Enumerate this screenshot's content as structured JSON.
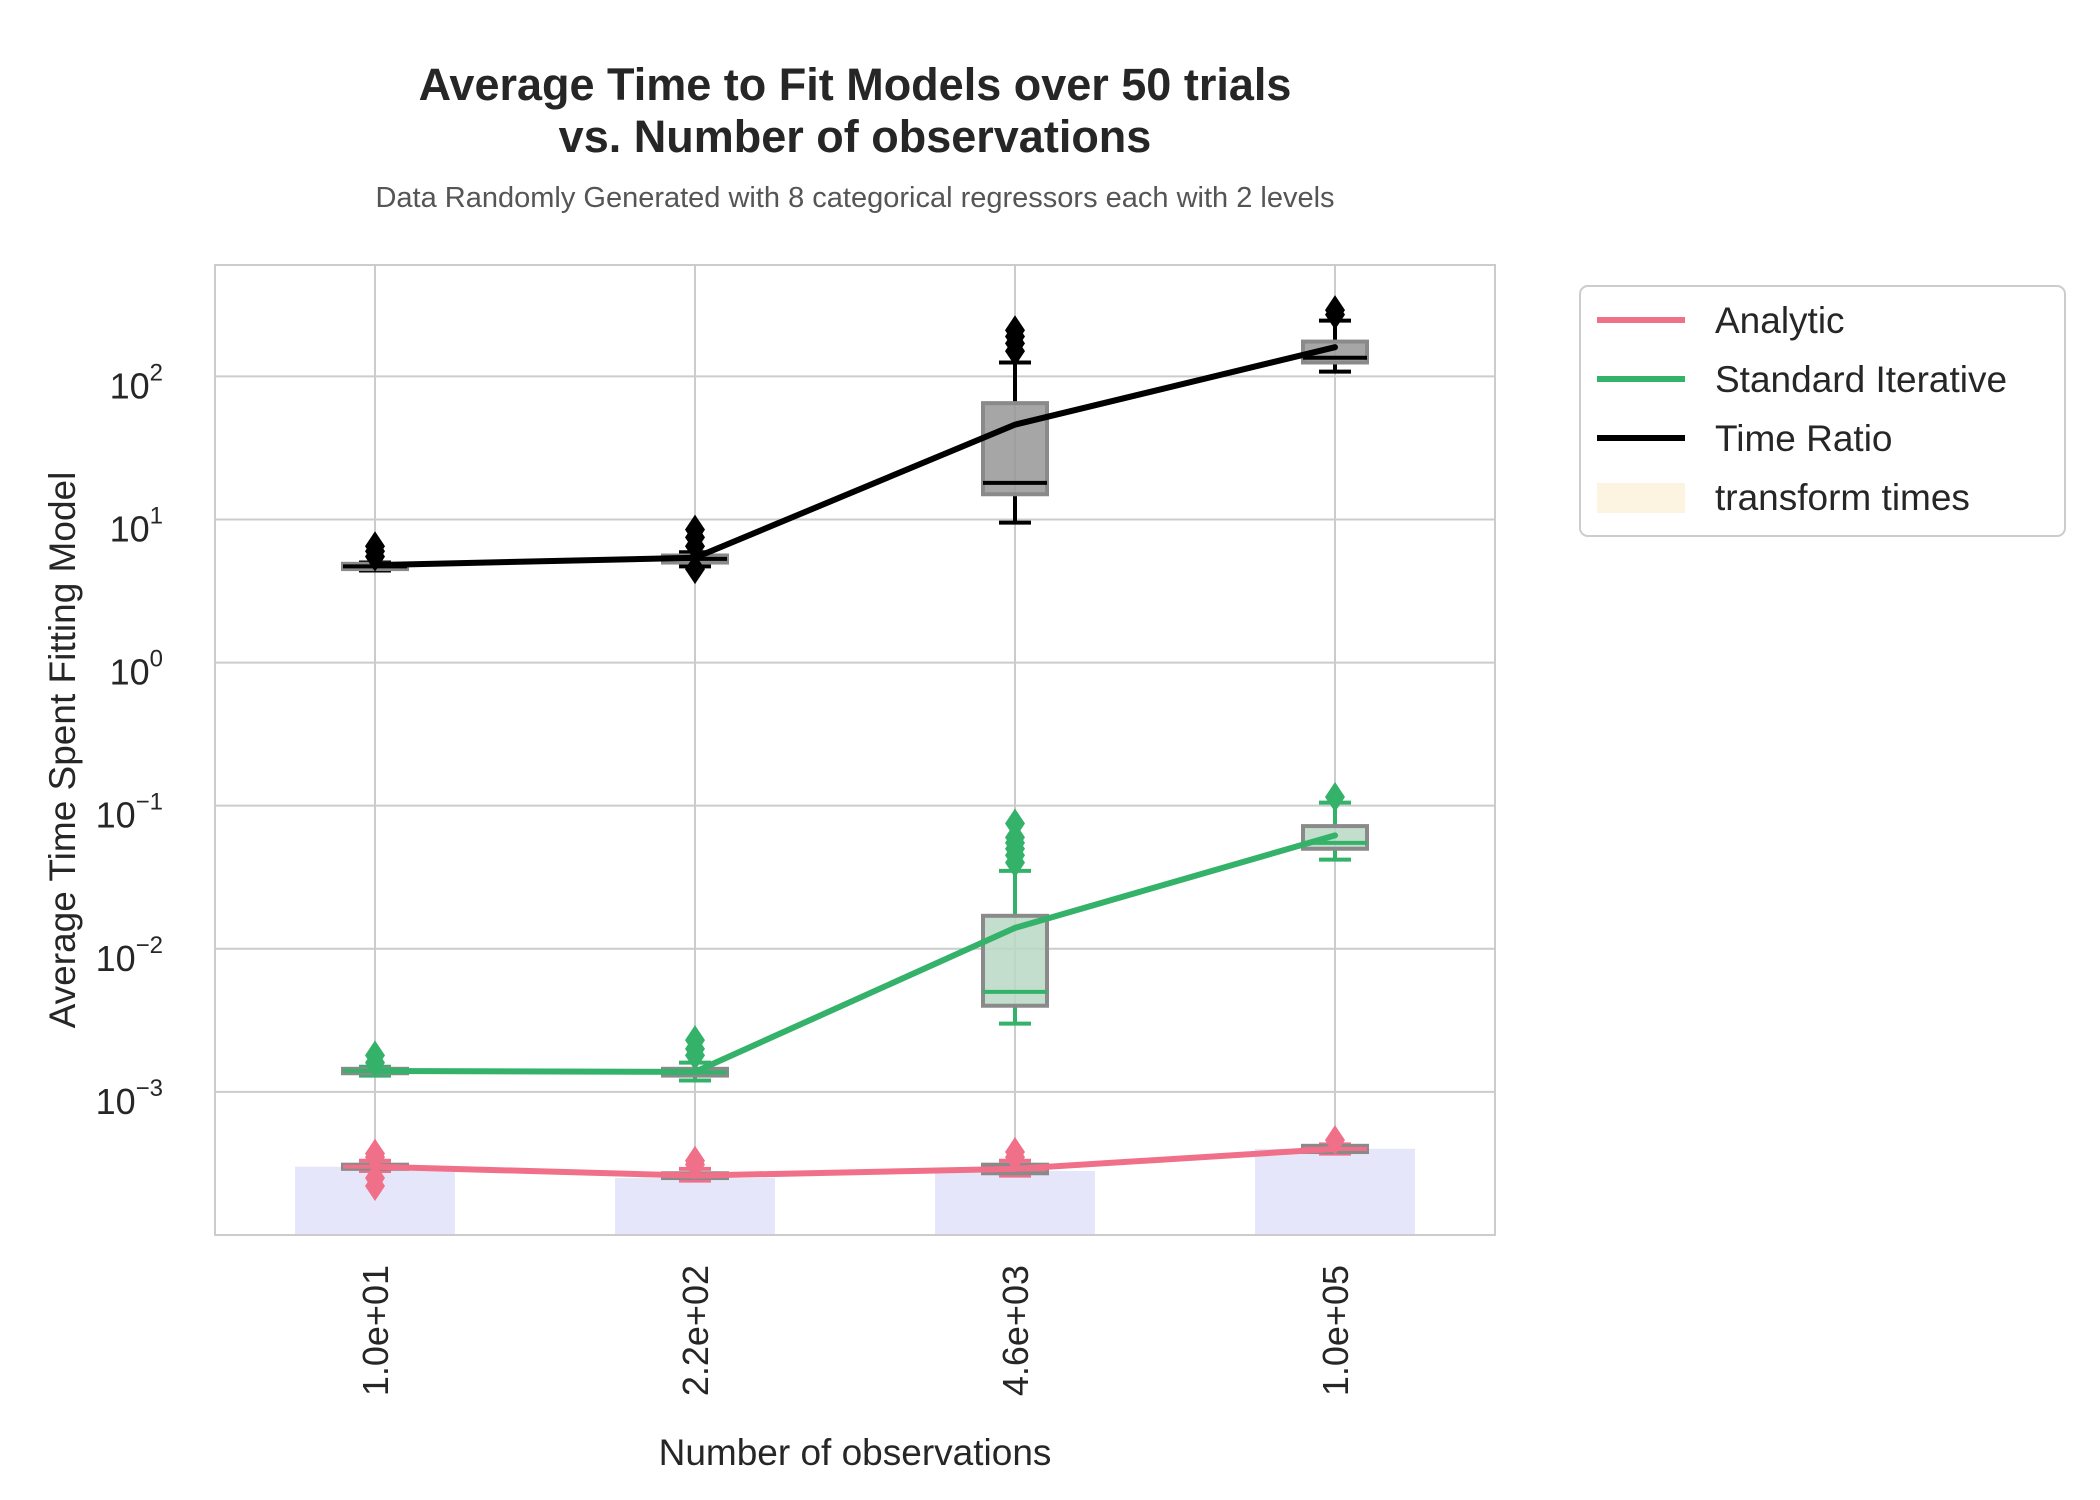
{
  "chart_data": {
    "type": "line",
    "title": [
      "Average Time to Fit Models over 50 trials",
      "vs. Number of observations"
    ],
    "subtitle": "Data Randomly Generated with 8 categorical regressors each with 2 levels",
    "xlabel": "Number of observations",
    "ylabel": "Average Time Spent Fitting Model",
    "y_scale": "log",
    "ylim": [
      0.0001,
      600
    ],
    "grid": true,
    "legend_position": "outside-right-top",
    "categories": [
      "1.0e+01",
      "2.2e+02",
      "4.6e+03",
      "1.0e+05"
    ],
    "y_ticks": [
      {
        "base": "10",
        "exp": "−3",
        "value": 0.001
      },
      {
        "base": "10",
        "exp": "−2",
        "value": 0.01
      },
      {
        "base": "10",
        "exp": "−1",
        "value": 0.1
      },
      {
        "base": "10",
        "exp": "0",
        "value": 1
      },
      {
        "base": "10",
        "exp": "1",
        "value": 10
      },
      {
        "base": "10",
        "exp": "2",
        "value": 100
      }
    ],
    "bars": {
      "name": "transform times",
      "color": "#e6e6fa",
      "legend_color": "#fdf3e1",
      "values": [
        0.0003,
        0.00025,
        0.00028,
        0.0004
      ]
    },
    "series": [
      {
        "name": "Analytic",
        "color": "#f07089",
        "values": [
          0.0003,
          0.00026,
          0.00029,
          0.0004
        ],
        "box_color": "#f07089",
        "boxes": [
          {
            "q1": 0.00029,
            "median": 0.0003,
            "q3": 0.00031,
            "whisker_low": 0.00028,
            "whisker_high": 0.00033,
            "outliers": [
              0.00022,
              0.00025,
              0.00035,
              0.00037
            ]
          },
          {
            "q1": 0.00025,
            "median": 0.00026,
            "q3": 0.00027,
            "whisker_low": 0.00024,
            "whisker_high": 0.00029,
            "outliers": [
              0.00031,
              0.00033
            ]
          },
          {
            "q1": 0.00027,
            "median": 0.00029,
            "q3": 0.00031,
            "whisker_low": 0.00026,
            "whisker_high": 0.00033,
            "outliers": [
              0.00035,
              0.00038
            ]
          },
          {
            "q1": 0.00038,
            "median": 0.0004,
            "q3": 0.00042,
            "whisker_low": 0.00037,
            "whisker_high": 0.00043,
            "outliers": [
              0.00046
            ]
          }
        ]
      },
      {
        "name": "Standard Iterative",
        "color": "#34b26a",
        "values": [
          0.0014,
          0.00138,
          0.014,
          0.062
        ],
        "box_color": "#b9d8c4",
        "boxes": [
          {
            "q1": 0.00135,
            "median": 0.0014,
            "q3": 0.00145,
            "whisker_low": 0.0013,
            "whisker_high": 0.0015,
            "outliers": [
              0.0016,
              0.0018
            ]
          },
          {
            "q1": 0.0013,
            "median": 0.00137,
            "q3": 0.00145,
            "whisker_low": 0.0012,
            "whisker_high": 0.0016,
            "outliers": [
              0.0018,
              0.002,
              0.0023
            ]
          },
          {
            "q1": 0.004,
            "median": 0.005,
            "q3": 0.017,
            "whisker_low": 0.003,
            "whisker_high": 0.035,
            "outliers": [
              0.04,
              0.045,
              0.05,
              0.055,
              0.06,
              0.075
            ]
          },
          {
            "q1": 0.05,
            "median": 0.055,
            "q3": 0.072,
            "whisker_low": 0.042,
            "whisker_high": 0.105,
            "outliers": [
              0.115
            ]
          }
        ]
      },
      {
        "name": "Time Ratio",
        "color": "#000000",
        "values": [
          4.8,
          5.4,
          46,
          160
        ],
        "box_color": "#969696",
        "boxes": [
          {
            "q1": 4.5,
            "median": 4.7,
            "q3": 4.9,
            "whisker_low": 4.4,
            "whisker_high": 5.0,
            "outliers": [
              5.5,
              6.0,
              6.5
            ]
          },
          {
            "q1": 5.0,
            "median": 5.3,
            "q3": 5.6,
            "whisker_low": 4.7,
            "whisker_high": 5.9,
            "outliers": [
              4.5,
              6.5,
              7.5,
              8.5
            ]
          },
          {
            "q1": 15,
            "median": 18,
            "q3": 65,
            "whisker_low": 9.5,
            "whisker_high": 125,
            "outliers": [
              150,
              170,
              190,
              210
            ]
          },
          {
            "q1": 125,
            "median": 135,
            "q3": 175,
            "whisker_low": 108,
            "whisker_high": 245,
            "outliers": [
              270,
              290
            ]
          }
        ]
      }
    ]
  }
}
